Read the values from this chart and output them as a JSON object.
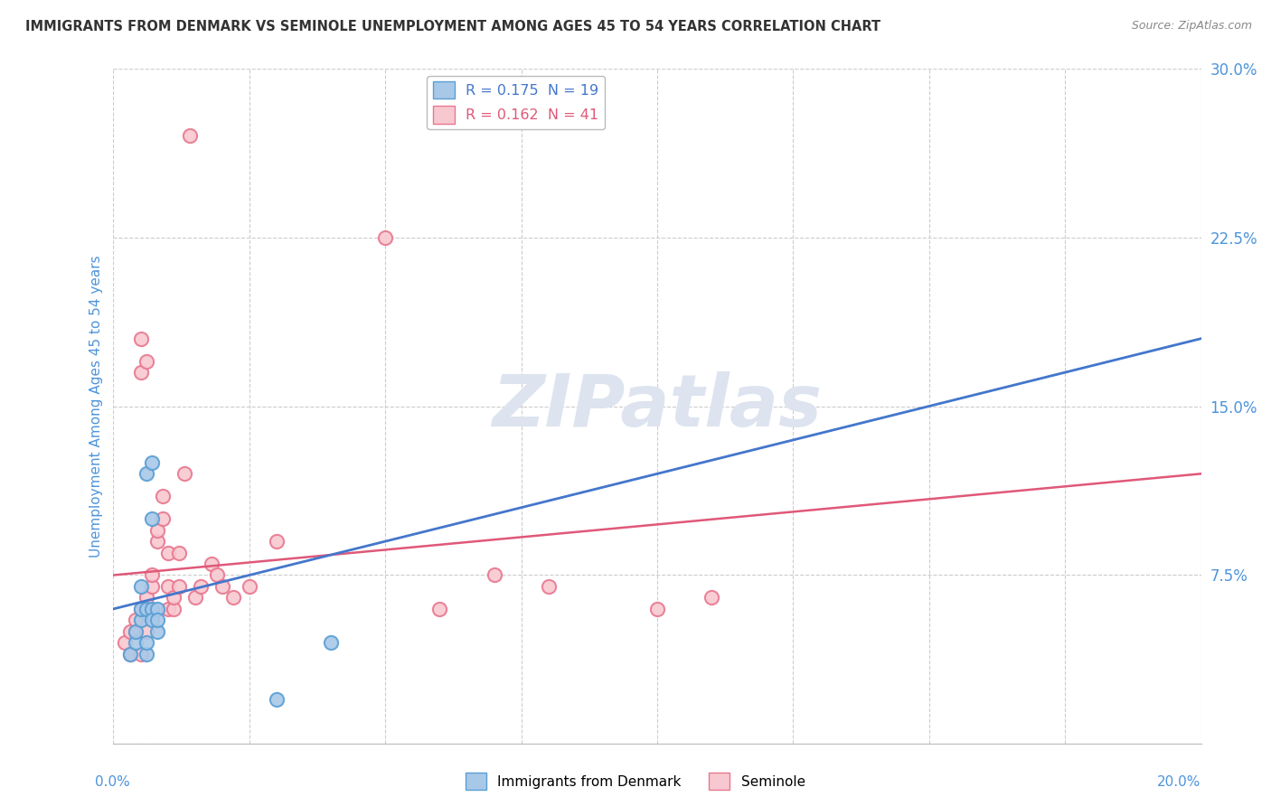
{
  "title": "IMMIGRANTS FROM DENMARK VS SEMINOLE UNEMPLOYMENT AMONG AGES 45 TO 54 YEARS CORRELATION CHART",
  "source": "Source: ZipAtlas.com",
  "ylabel": "Unemployment Among Ages 45 to 54 years",
  "xlim": [
    0.0,
    0.2
  ],
  "ylim": [
    0.0,
    0.3
  ],
  "yticks": [
    0.0,
    0.075,
    0.15,
    0.225,
    0.3
  ],
  "ytick_labels": [
    "",
    "7.5%",
    "15.0%",
    "22.5%",
    "30.0%"
  ],
  "denmark_R": 0.175,
  "denmark_N": 19,
  "seminole_R": 0.162,
  "seminole_N": 41,
  "denmark_color": "#a8c8e8",
  "denmark_edge": "#5a9fd4",
  "seminole_color": "#f8c8d0",
  "seminole_edge": "#e87890",
  "denmark_trendline_color": "#4477cc",
  "seminole_trendline_color": "#e05878",
  "watermark_color": "#dde4ef",
  "title_color": "#333333",
  "axis_label_color": "#4d94db",
  "denmark_x": [
    0.003,
    0.004,
    0.004,
    0.005,
    0.005,
    0.005,
    0.006,
    0.006,
    0.006,
    0.006,
    0.007,
    0.007,
    0.007,
    0.007,
    0.008,
    0.008,
    0.008,
    0.03,
    0.04
  ],
  "denmark_y": [
    0.04,
    0.045,
    0.05,
    0.055,
    0.06,
    0.07,
    0.04,
    0.045,
    0.06,
    0.12,
    0.125,
    0.06,
    0.055,
    0.1,
    0.05,
    0.06,
    0.055,
    0.02,
    0.045
  ],
  "seminole_x": [
    0.002,
    0.003,
    0.003,
    0.004,
    0.004,
    0.005,
    0.005,
    0.005,
    0.005,
    0.006,
    0.006,
    0.006,
    0.007,
    0.007,
    0.008,
    0.008,
    0.009,
    0.009,
    0.01,
    0.01,
    0.01,
    0.011,
    0.011,
    0.012,
    0.012,
    0.013,
    0.014,
    0.015,
    0.016,
    0.018,
    0.019,
    0.02,
    0.022,
    0.025,
    0.03,
    0.05,
    0.06,
    0.07,
    0.08,
    0.1,
    0.11
  ],
  "seminole_y": [
    0.045,
    0.04,
    0.05,
    0.05,
    0.055,
    0.04,
    0.06,
    0.165,
    0.18,
    0.17,
    0.05,
    0.065,
    0.07,
    0.075,
    0.09,
    0.095,
    0.1,
    0.11,
    0.07,
    0.06,
    0.085,
    0.06,
    0.065,
    0.07,
    0.085,
    0.12,
    0.27,
    0.065,
    0.07,
    0.08,
    0.075,
    0.07,
    0.065,
    0.07,
    0.09,
    0.225,
    0.06,
    0.075,
    0.07,
    0.06,
    0.065
  ]
}
